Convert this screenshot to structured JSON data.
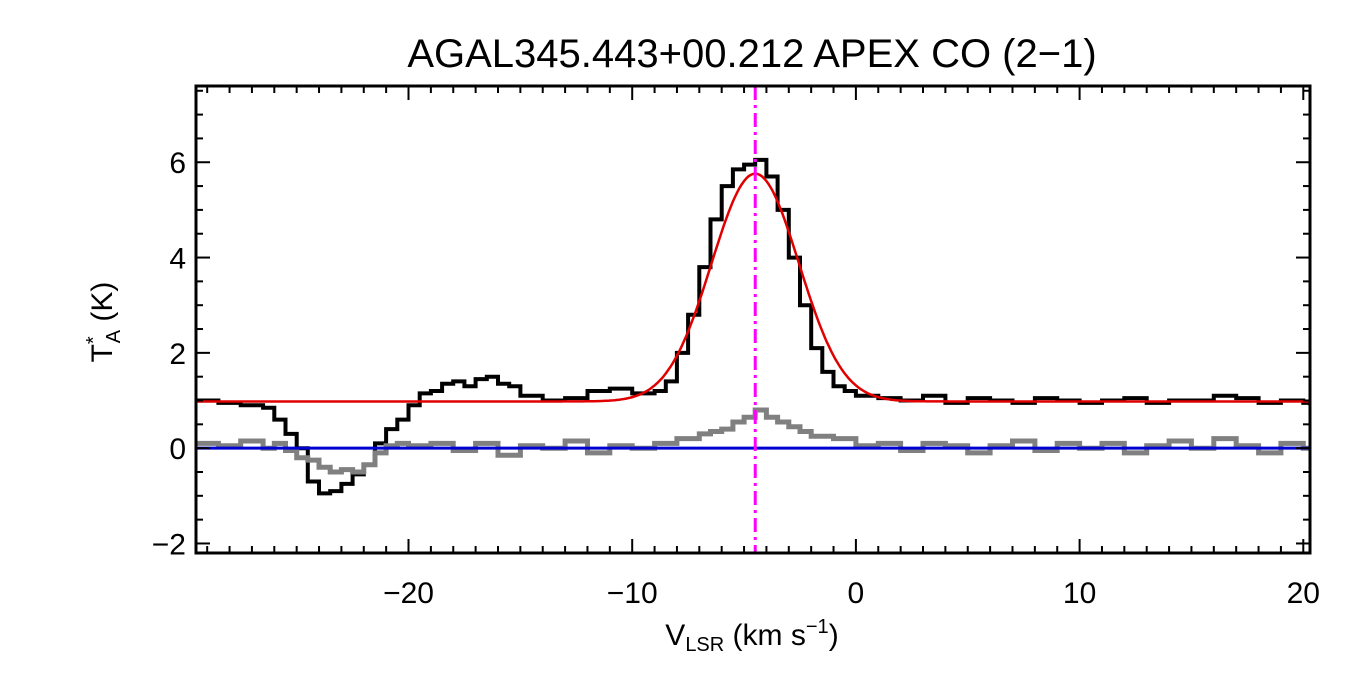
{
  "chart_data": {
    "type": "line",
    "title": "AGAL345.443+00.212  APEX CO (2−1)",
    "xlabel": {
      "main": "V",
      "sub": "LSR",
      "unit_pre": " (km s",
      "unit_sup": "−1",
      "unit_post": ")"
    },
    "ylabel": {
      "main": "T",
      "sup": "*",
      "sub": "A",
      "unit": " (K)"
    },
    "xlim": [
      -29.5,
      20.3
    ],
    "ylim": [
      -2.2,
      7.6
    ],
    "xticks": [
      -20,
      -10,
      0,
      10,
      20
    ],
    "xtick_labels": [
      "−20",
      "−10",
      "0",
      "10",
      "20"
    ],
    "yticks": [
      -2,
      0,
      2,
      4,
      6
    ],
    "ytick_labels": [
      "−2",
      "0",
      "2",
      "4",
      "6"
    ],
    "grid": false,
    "legend": "none",
    "colors": {
      "observed": "#000000",
      "residual": "#808080",
      "fit": "#e00000",
      "zero_line": "#0000d0",
      "vlsr_marker": "#ff00ff"
    },
    "vlsr_marker": -4.5,
    "zero_level": 0,
    "fit": {
      "baseline": 0.98,
      "amplitude": 4.78,
      "center": -4.5,
      "fwhm": 4.6
    },
    "series": [
      {
        "role": "observed",
        "x": [
          -29.5,
          -28.5,
          -27.5,
          -26.5,
          -26,
          -25.5,
          -25,
          -24.5,
          -24,
          -23.5,
          -23,
          -22.5,
          -22,
          -21.5,
          -21,
          -20.5,
          -20,
          -19.5,
          -19,
          -18.5,
          -18,
          -17.5,
          -17,
          -16.5,
          -16,
          -15.5,
          -15,
          -14,
          -13,
          -12,
          -11,
          -10,
          -9,
          -8.5,
          -8,
          -7.5,
          -7,
          -6.5,
          -6,
          -5.5,
          -5,
          -4.5,
          -4,
          -3.5,
          -3,
          -2.5,
          -2,
          -1.5,
          -1,
          -0.5,
          0,
          1,
          2,
          3,
          4,
          5,
          6,
          7,
          8,
          9,
          10,
          11,
          12,
          13,
          14,
          15,
          16,
          17,
          18,
          19,
          20,
          20.3
        ],
        "y": [
          1.0,
          0.95,
          0.9,
          0.85,
          0.6,
          0.3,
          0.0,
          -0.7,
          -0.95,
          -0.9,
          -0.75,
          -0.55,
          -0.35,
          0.1,
          0.4,
          0.6,
          0.9,
          1.15,
          1.2,
          1.35,
          1.4,
          1.3,
          1.45,
          1.5,
          1.35,
          1.3,
          1.1,
          1.0,
          1.05,
          1.2,
          1.25,
          1.15,
          1.2,
          1.4,
          2.0,
          2.8,
          3.8,
          4.8,
          5.5,
          5.85,
          5.95,
          6.05,
          5.7,
          5.0,
          4.0,
          3.0,
          2.1,
          1.6,
          1.3,
          1.2,
          1.1,
          1.05,
          1.0,
          1.1,
          0.95,
          1.05,
          1.0,
          0.95,
          1.05,
          1.0,
          0.95,
          1.0,
          1.05,
          0.95,
          1.0,
          1.0,
          1.1,
          1.05,
          0.95,
          1.0,
          0.95,
          0.9
        ]
      },
      {
        "role": "residual",
        "x": [
          -29.5,
          -28.5,
          -27.5,
          -26.5,
          -26,
          -25.5,
          -25,
          -24.5,
          -24,
          -23.5,
          -23,
          -22.5,
          -22,
          -21.5,
          -21,
          -20.5,
          -20,
          -19,
          -18,
          -17,
          -16,
          -15,
          -14,
          -13,
          -12,
          -11,
          -10,
          -9,
          -8,
          -7,
          -6.5,
          -6,
          -5.5,
          -5,
          -4.5,
          -4,
          -3.5,
          -3,
          -2.5,
          -2,
          -1,
          0,
          1,
          2,
          3,
          4,
          5,
          6,
          7,
          8,
          9,
          10,
          11,
          12,
          13,
          14,
          15,
          16,
          17,
          18,
          19,
          20,
          20.3
        ],
        "y": [
          0.1,
          0.05,
          0.15,
          0.0,
          0.1,
          -0.05,
          -0.2,
          -0.25,
          -0.4,
          -0.5,
          -0.45,
          -0.5,
          -0.35,
          -0.1,
          0.05,
          0.1,
          0.05,
          0.1,
          -0.05,
          0.1,
          -0.15,
          0.05,
          0.0,
          0.15,
          -0.1,
          0.05,
          0.0,
          0.1,
          0.2,
          0.3,
          0.35,
          0.4,
          0.55,
          0.65,
          0.8,
          0.65,
          0.55,
          0.45,
          0.35,
          0.25,
          0.2,
          0.05,
          0.1,
          -0.05,
          0.1,
          0.05,
          -0.1,
          0.05,
          0.15,
          -0.05,
          0.1,
          0.0,
          0.1,
          -0.1,
          0.05,
          0.15,
          0.0,
          0.2,
          0.05,
          -0.1,
          0.1,
          0.0,
          0.05
        ]
      }
    ]
  }
}
